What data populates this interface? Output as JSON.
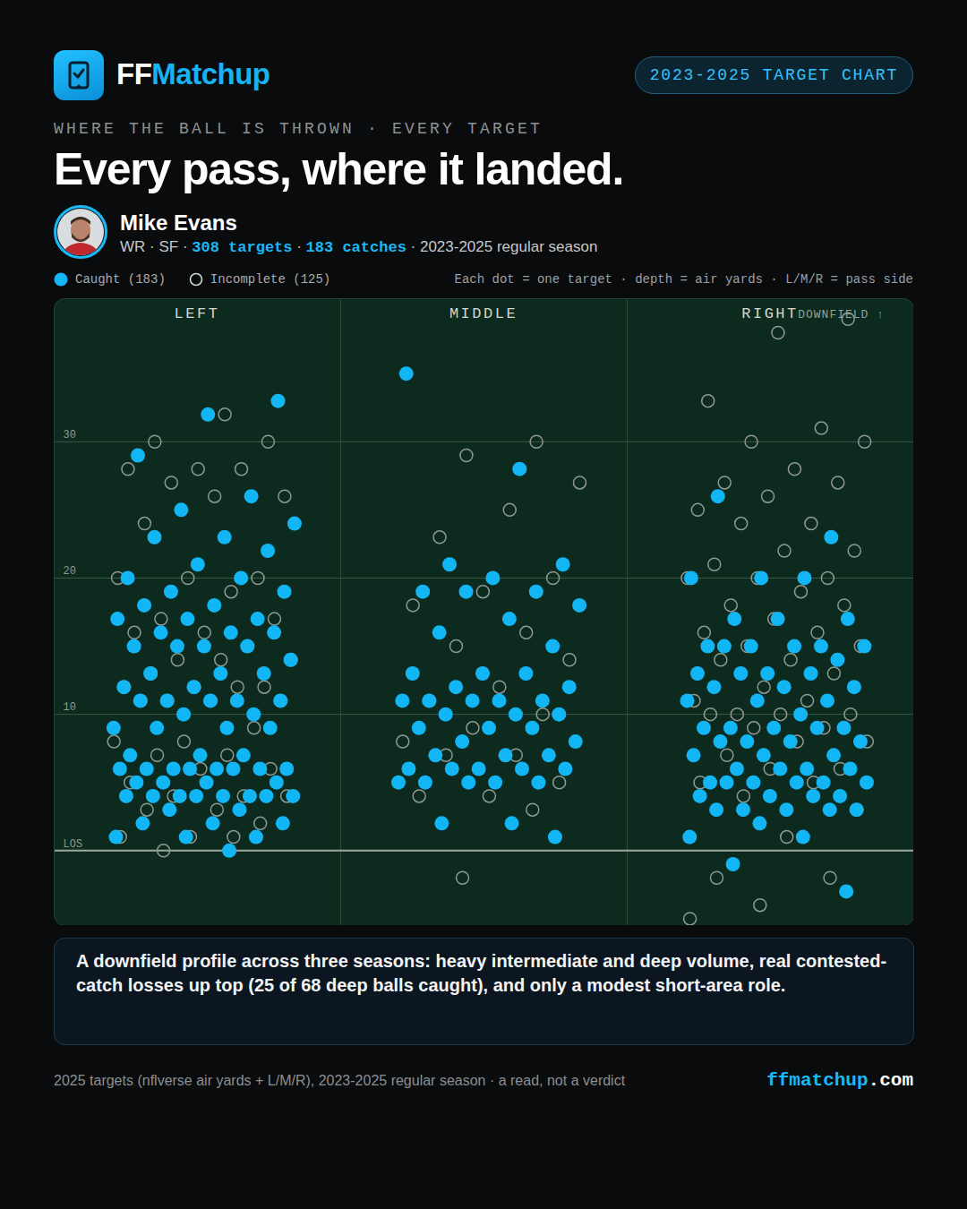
{
  "chart_data": {
    "type": "scatter",
    "brand": [
      "FF",
      "Matchup"
    ],
    "badge": "2023-2025 TARGET CHART",
    "kicker": "WHERE THE BALL IS THROWN · EVERY TARGET",
    "title": "Every pass, where it landed.",
    "player": {
      "name": "Mike Evans",
      "separator": " · ",
      "details": [
        {
          "text": "WR"
        },
        {
          "text": "SF"
        },
        {
          "text": "308 targets",
          "color": "#1ab8f5"
        },
        {
          "text": "183 catches",
          "color": "#1ab8f5"
        },
        {
          "text": "2023-2025 regular season"
        }
      ]
    },
    "legend_note": "Each dot = one target · depth = air yards · L/M/R = pass side",
    "axis_note": "DOWNFIELD ↑",
    "categories": [
      "LEFT",
      "MIDDLE",
      "RIGHT"
    ],
    "ylim": [
      -5.5,
      40.5
    ],
    "yticks": [
      {
        "value": 0,
        "label": "LOS"
      },
      10,
      20,
      30
    ],
    "grid": true,
    "legend": "top-left",
    "tick_labels": "y",
    "series": [
      {
        "name": "Incomplete (125)",
        "color": "#8e9a93",
        "marker": "open_circle",
        "values": [
          [
            32,
            30,
            30,
            28,
            28,
            28,
            27,
            26,
            26,
            24,
            20,
            20,
            20,
            19,
            17,
            17,
            16,
            16,
            15,
            14,
            14,
            14,
            13,
            12,
            12,
            12,
            12,
            11,
            11,
            11,
            11,
            9,
            8,
            8,
            7,
            7,
            6,
            6,
            5,
            4,
            4,
            4,
            3,
            3,
            2,
            1,
            1,
            1,
            0
          ],
          [
            30,
            29,
            27,
            25,
            23,
            20,
            19,
            18,
            16,
            15,
            14,
            12,
            11,
            10,
            9,
            8,
            7,
            7,
            5,
            4,
            4,
            3,
            -2
          ],
          [
            39,
            38,
            33,
            31,
            30,
            30,
            28,
            27,
            27,
            26,
            25,
            24,
            24,
            22,
            22,
            21,
            20,
            20,
            20,
            19,
            18,
            18,
            17,
            16,
            16,
            15,
            15,
            14,
            14,
            13,
            12,
            11,
            11,
            10,
            10,
            10,
            10,
            9,
            9,
            8,
            8,
            7,
            6,
            6,
            5,
            5,
            4,
            3,
            1,
            -2,
            -2,
            -4,
            -5
          ]
        ]
      },
      {
        "name": "Caught (183)",
        "color": "#12b6f5",
        "marker": "circle",
        "values": [
          [
            33,
            32,
            29,
            26,
            25,
            24,
            23,
            23,
            22,
            21,
            20,
            20,
            19,
            19,
            18,
            18,
            17,
            17,
            17,
            16,
            16,
            16,
            15,
            15,
            15,
            15,
            14,
            13,
            13,
            13,
            12,
            12,
            11,
            11,
            11,
            11,
            11,
            10,
            10,
            9,
            9,
            9,
            9,
            7,
            7,
            7,
            6,
            6,
            6,
            6,
            6,
            6,
            6,
            6,
            5,
            5,
            5,
            5,
            4,
            4,
            4,
            4,
            4,
            4,
            4,
            4,
            3,
            3,
            2,
            2,
            2,
            1,
            1,
            1,
            0
          ],
          [
            35,
            28,
            21,
            21,
            20,
            19,
            19,
            19,
            18,
            17,
            16,
            15,
            13,
            13,
            13,
            12,
            12,
            11,
            11,
            11,
            11,
            11,
            10,
            10,
            10,
            9,
            9,
            9,
            8,
            8,
            7,
            7,
            7,
            6,
            6,
            6,
            6,
            6,
            5,
            5,
            5,
            5,
            5,
            2,
            2,
            1
          ],
          [
            26,
            23,
            20,
            20,
            20,
            17,
            17,
            17,
            15,
            15,
            15,
            15,
            15,
            15,
            14,
            13,
            13,
            13,
            13,
            12,
            12,
            12,
            11,
            11,
            11,
            10,
            9,
            9,
            9,
            9,
            9,
            8,
            8,
            8,
            8,
            7,
            7,
            7,
            6,
            6,
            6,
            6,
            5,
            5,
            5,
            5,
            5,
            5,
            4,
            4,
            4,
            4,
            3,
            3,
            3,
            3,
            3,
            2,
            1,
            1,
            -1,
            -3
          ]
        ]
      }
    ],
    "caption": "A downfield profile across three seasons: heavy intermediate and deep volume, real contested-catch losses up top (25 of 68 deep balls caught), and only a modest short-area role.",
    "footer": "2025 targets (nflverse air yards + L/M/R), 2023-2025 regular season · a read, not a verdict",
    "site": [
      {
        "text": "ffmatchup",
        "color": "#1ab8f5"
      },
      {
        "text": ".com",
        "color": "#ffffff"
      }
    ]
  }
}
